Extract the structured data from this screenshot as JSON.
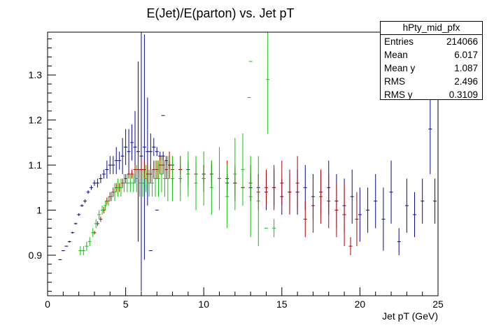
{
  "chart_data": {
    "type": "scatter",
    "title": "E(Jet)/E(parton) vs. Jet pT",
    "xlabel": "Jet pT (GeV)",
    "ylabel": "",
    "xlim": [
      0,
      25
    ],
    "ylim": [
      0.81,
      1.395
    ],
    "xticks": [
      0,
      5,
      10,
      15,
      20,
      25
    ],
    "yticks": [
      0.9,
      1,
      1.1,
      1.2,
      1.3
    ],
    "colors": {
      "blue": "#0a0a8c",
      "red": "#b00000",
      "green": "#10c010"
    },
    "series": [
      {
        "key": "blue",
        "x": [
          0.8,
          1.0,
          1.2,
          1.4,
          1.6,
          1.8,
          2.0,
          2.2,
          2.4,
          2.6,
          2.8,
          3.0,
          3.2,
          3.4,
          3.6,
          3.8,
          4.0,
          4.2,
          4.4,
          4.6,
          4.8,
          5.0,
          5.2,
          5.4,
          5.6,
          5.8,
          6.0,
          6.2,
          6.4,
          6.6,
          6.8,
          7.0,
          7.2,
          7.4,
          7.6,
          7.8,
          8.0,
          8.5,
          9.0,
          9.5,
          10.0,
          10.5,
          11.0,
          11.5,
          12.0,
          12.5,
          13.0,
          13.5,
          14.0,
          14.5,
          15.0,
          15.5,
          16.0,
          16.5,
          17.0,
          17.5,
          18.0,
          18.5,
          19.0,
          19.5,
          20.0,
          20.5,
          21.0,
          21.5,
          22.0,
          22.5,
          23.0,
          23.5,
          24.0,
          24.5,
          24.8
        ],
        "y": [
          0.89,
          0.91,
          0.92,
          0.93,
          0.95,
          0.97,
          0.99,
          1.01,
          1.02,
          1.04,
          1.05,
          1.06,
          1.06,
          1.07,
          1.08,
          1.09,
          1.1,
          1.1,
          1.11,
          1.11,
          1.12,
          1.14,
          1.13,
          1.15,
          1.14,
          1.13,
          1.12,
          1.14,
          1.13,
          1.13,
          1.14,
          1.13,
          1.12,
          1.12,
          1.11,
          1.1,
          1.1,
          1.09,
          1.09,
          1.08,
          1.08,
          1.08,
          1.07,
          1.06,
          1.06,
          1.05,
          1.05,
          1.05,
          1.04,
          1.05,
          1.03,
          1.04,
          1.04,
          1.05,
          1.03,
          1.04,
          1.05,
          1.02,
          1.01,
          1.03,
          0.99,
          1.0,
          1.02,
          0.98,
          1.04,
          0.93,
          1.01,
          0.99,
          1.02,
          1.18,
          1.02
        ],
        "yerr": [
          0.001,
          0.001,
          0.001,
          0.002,
          0.002,
          0.002,
          0.003,
          0.003,
          0.004,
          0.004,
          0.005,
          0.006,
          0.01,
          0.01,
          0.01,
          0.02,
          0.02,
          0.02,
          0.03,
          0.02,
          0.04,
          0.04,
          0.05,
          0.04,
          0.08,
          0.2,
          0.3,
          0.25,
          0.12,
          0.04,
          0.02,
          0.01,
          0.01,
          0.01,
          0.01,
          0.01,
          0.01,
          0.01,
          0.01,
          0.02,
          0.02,
          0.02,
          0.02,
          0.02,
          0.03,
          0.03,
          0.03,
          0.03,
          0.04,
          0.04,
          0.04,
          0.04,
          0.05,
          0.05,
          0.05,
          0.05,
          0.06,
          0.06,
          0.06,
          0.06,
          0.06,
          0.05,
          0.06,
          0.07,
          0.07,
          0.03,
          0.06,
          0.05,
          0.05,
          0.1,
          0.05
        ]
      },
      {
        "key": "red",
        "x": [
          3.0,
          3.2,
          3.4,
          3.6,
          3.8,
          4.0,
          4.2,
          4.4,
          4.6,
          4.8,
          5.0,
          5.2,
          5.4,
          5.6,
          5.8,
          6.0,
          6.2,
          6.4,
          6.6,
          6.8,
          7.0,
          7.2,
          7.4,
          7.6,
          7.8,
          8.0,
          8.5,
          9.0,
          9.5,
          10.0,
          10.5,
          11.0,
          11.5,
          12.0,
          12.5,
          13.0,
          13.5,
          14.0,
          14.5,
          15.0,
          15.5,
          16.0,
          16.5,
          17.0,
          17.5,
          18.0,
          18.5,
          19.0,
          19.4,
          19.8
        ],
        "y": [
          0.95,
          0.97,
          0.98,
          1.0,
          1.02,
          1.03,
          1.04,
          1.05,
          1.05,
          1.06,
          1.07,
          1.08,
          1.08,
          1.09,
          1.09,
          1.09,
          1.09,
          1.08,
          1.08,
          1.09,
          1.09,
          1.1,
          1.1,
          1.09,
          1.1,
          1.09,
          1.09,
          1.08,
          1.08,
          1.07,
          1.08,
          1.07,
          1.07,
          1.06,
          1.05,
          1.06,
          1.04,
          1.05,
          1.05,
          1.06,
          1.04,
          1.06,
          0.98,
          1.01,
          1.03,
          1.02,
          1.0,
          0.99,
          0.92,
          0.98
        ],
        "yerr": [
          0.004,
          0.005,
          0.006,
          0.007,
          0.008,
          0.01,
          0.01,
          0.01,
          0.01,
          0.01,
          0.01,
          0.01,
          0.01,
          0.01,
          0.02,
          0.02,
          0.02,
          0.02,
          0.02,
          0.02,
          0.02,
          0.02,
          0.02,
          0.02,
          0.03,
          0.03,
          0.03,
          0.03,
          0.03,
          0.03,
          0.03,
          0.04,
          0.04,
          0.04,
          0.04,
          0.04,
          0.04,
          0.04,
          0.05,
          0.05,
          0.05,
          0.06,
          0.04,
          0.06,
          0.06,
          0.06,
          0.06,
          0.07,
          0.02,
          0.06
        ]
      },
      {
        "key": "green",
        "x": [
          2.1,
          2.3,
          2.5,
          2.7,
          2.9,
          3.1,
          3.3,
          3.5,
          3.7,
          3.9,
          4.1,
          4.3,
          4.5,
          4.7,
          4.9,
          5.1,
          5.3,
          5.5,
          5.7,
          5.9,
          6.1,
          6.3,
          6.5,
          6.7,
          6.9,
          7.1,
          7.3,
          7.5,
          7.7,
          8.0,
          8.5,
          9.0,
          9.5,
          10.0,
          10.5,
          11.0,
          11.5,
          12.0,
          12.5,
          13.0,
          13.5,
          14.1,
          14.5
        ],
        "y": [
          0.91,
          0.91,
          0.92,
          0.93,
          0.95,
          0.97,
          0.99,
          1.0,
          1.01,
          1.02,
          1.03,
          1.04,
          1.05,
          1.05,
          1.06,
          1.06,
          1.06,
          1.06,
          1.07,
          1.06,
          1.06,
          1.07,
          1.06,
          1.06,
          1.07,
          1.07,
          1.08,
          1.07,
          1.07,
          1.07,
          1.07,
          1.08,
          1.06,
          1.07,
          1.05,
          1.07,
          1.03,
          1.08,
          1.09,
          1.03,
          1.02,
          1.29,
          0.96
        ],
        "yerr": [
          0.01,
          0.01,
          0.01,
          0.01,
          0.01,
          0.01,
          0.01,
          0.01,
          0.01,
          0.01,
          0.01,
          0.02,
          0.02,
          0.02,
          0.02,
          0.02,
          0.02,
          0.02,
          0.03,
          0.03,
          0.03,
          0.03,
          0.03,
          0.03,
          0.04,
          0.04,
          0.04,
          0.04,
          0.05,
          0.05,
          0.05,
          0.05,
          0.06,
          0.06,
          0.06,
          0.07,
          0.07,
          0.08,
          0.08,
          0.09,
          0.1,
          0.12,
          0.02
        ]
      }
    ],
    "outliers": [
      {
        "key": "blue",
        "x": 6.6,
        "y": 0.91
      },
      {
        "key": "blue",
        "x": 7.4,
        "y": 1.21
      },
      {
        "key": "blue",
        "x": 7.0,
        "y": 1.0
      },
      {
        "key": "green",
        "x": 13.0,
        "y": 1.33
      },
      {
        "key": "green",
        "x": 12.9,
        "y": 1.25
      },
      {
        "key": "green",
        "x": 14.0,
        "y": 0.96
      }
    ],
    "grid": false,
    "legend_position": "top-right"
  },
  "stats_box": {
    "name": "hPty_mid_pfx",
    "rows": [
      {
        "label": "Entries",
        "value": "214066"
      },
      {
        "label": "Mean",
        "value": "6.017"
      },
      {
        "label": "Mean y",
        "value": "1.087"
      },
      {
        "label": "RMS",
        "value": "2.496"
      },
      {
        "label": "RMS y",
        "value": "0.3109"
      }
    ]
  }
}
